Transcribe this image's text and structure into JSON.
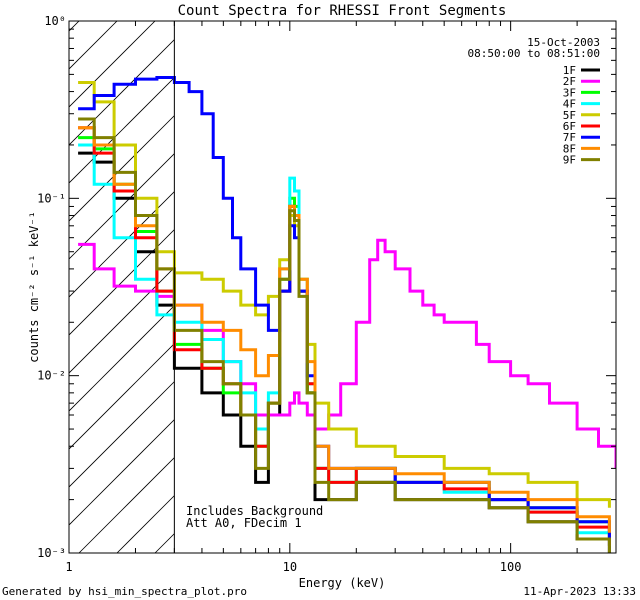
{
  "chart_data": {
    "type": "line",
    "title": "Count Spectra for RHESSI Front Segments",
    "xlabel": "Energy (keV)",
    "ylabel": "counts cm⁻² s⁻¹ keV⁻¹",
    "xscale": "log",
    "yscale": "log",
    "xlim": [
      1,
      300
    ],
    "ylim": [
      0.001,
      1
    ],
    "x_ticks": [
      {
        "value": 1,
        "label": "1"
      },
      {
        "value": 10,
        "label": "10"
      },
      {
        "value": 100,
        "label": "100"
      }
    ],
    "y_ticks": [
      {
        "value": 1,
        "label": "10⁰"
      },
      {
        "value": 0.1,
        "label": "10⁻¹"
      },
      {
        "value": 0.01,
        "label": "10⁻²"
      },
      {
        "value": 0.001,
        "label": "10⁻³"
      }
    ],
    "hatched_region": {
      "xmin": 1,
      "xmax": 3
    },
    "date": "15-Oct-2003",
    "time_range": "08:50:00 to 08:51:00",
    "annotations": [
      "Includes Background",
      "Att A0, FDecim 1"
    ],
    "series": [
      {
        "name": "1F",
        "color": "#000000",
        "x": [
          1.1,
          1.3,
          1.6,
          2,
          2.5,
          3,
          4,
          5,
          6,
          7,
          8,
          9,
          10,
          10.5,
          11,
          12,
          13,
          15,
          20,
          30,
          50,
          80,
          120,
          200,
          280
        ],
        "y": [
          0.18,
          0.16,
          0.1,
          0.05,
          0.025,
          0.011,
          0.008,
          0.006,
          0.004,
          0.0025,
          0.006,
          0.03,
          0.09,
          0.08,
          0.03,
          0.008,
          0.002,
          0.002,
          0.0025,
          0.002,
          0.002,
          0.0018,
          0.0015,
          0.0012,
          0.001
        ]
      },
      {
        "name": "2F",
        "color": "#ff00ff",
        "x": [
          1.1,
          1.3,
          1.6,
          2,
          2.5,
          3,
          4,
          5,
          6,
          7,
          8,
          9,
          10,
          10.5,
          11,
          12,
          13,
          15,
          17,
          20,
          23,
          25,
          27,
          30,
          35,
          40,
          45,
          50,
          60,
          70,
          80,
          100,
          120,
          150,
          200,
          250,
          300
        ],
        "y": [
          0.055,
          0.04,
          0.032,
          0.03,
          0.028,
          0.025,
          0.018,
          0.012,
          0.009,
          0.006,
          0.006,
          0.006,
          0.007,
          0.008,
          0.007,
          0.006,
          0.005,
          0.006,
          0.009,
          0.02,
          0.045,
          0.058,
          0.05,
          0.04,
          0.03,
          0.025,
          0.022,
          0.02,
          0.02,
          0.015,
          0.012,
          0.01,
          0.009,
          0.007,
          0.005,
          0.004,
          0.003
        ]
      },
      {
        "name": "3F",
        "color": "#00ff00",
        "x": [
          1.1,
          1.3,
          1.6,
          2,
          2.5,
          3,
          4,
          5,
          6,
          7,
          8,
          9,
          10,
          10.5,
          11,
          12,
          13,
          15,
          20,
          30,
          50,
          80,
          120,
          200,
          280
        ],
        "y": [
          0.22,
          0.19,
          0.12,
          0.065,
          0.03,
          0.015,
          0.011,
          0.008,
          0.006,
          0.004,
          0.007,
          0.035,
          0.1,
          0.09,
          0.03,
          0.008,
          0.003,
          0.0025,
          0.003,
          0.0025,
          0.0025,
          0.002,
          0.0018,
          0.0015,
          0.0012
        ]
      },
      {
        "name": "4F",
        "color": "#00ffff",
        "x": [
          1.1,
          1.3,
          1.6,
          2,
          2.5,
          3,
          4,
          5,
          6,
          7,
          8,
          9,
          10,
          10.5,
          11,
          12,
          13,
          15,
          20,
          30,
          50,
          80,
          120,
          200,
          280
        ],
        "y": [
          0.2,
          0.12,
          0.06,
          0.035,
          0.022,
          0.02,
          0.016,
          0.012,
          0.008,
          0.005,
          0.008,
          0.04,
          0.13,
          0.11,
          0.035,
          0.009,
          0.003,
          0.0025,
          0.003,
          0.0025,
          0.0022,
          0.002,
          0.0017,
          0.0013,
          0.0011
        ]
      },
      {
        "name": "5F",
        "color": "#cccc00",
        "x": [
          1.1,
          1.3,
          1.6,
          2,
          2.5,
          3,
          4,
          5,
          6,
          7,
          8,
          9,
          10,
          10.5,
          11,
          12,
          13,
          15,
          20,
          30,
          50,
          80,
          120,
          200,
          280
        ],
        "y": [
          0.45,
          0.35,
          0.2,
          0.1,
          0.05,
          0.038,
          0.035,
          0.03,
          0.025,
          0.022,
          0.028,
          0.045,
          0.08,
          0.07,
          0.035,
          0.015,
          0.007,
          0.005,
          0.004,
          0.0035,
          0.003,
          0.0028,
          0.0025,
          0.002,
          0.0018
        ]
      },
      {
        "name": "6F",
        "color": "#ff0000",
        "x": [
          1.1,
          1.3,
          1.6,
          2,
          2.5,
          3,
          4,
          5,
          6,
          7,
          8,
          9,
          10,
          10.5,
          11,
          12,
          13,
          15,
          20,
          30,
          50,
          80,
          120,
          200,
          280
        ],
        "y": [
          0.25,
          0.18,
          0.11,
          0.06,
          0.03,
          0.014,
          0.011,
          0.009,
          0.006,
          0.004,
          0.007,
          0.03,
          0.09,
          0.08,
          0.03,
          0.009,
          0.003,
          0.0025,
          0.003,
          0.0025,
          0.0023,
          0.002,
          0.0017,
          0.0014,
          0.0011
        ]
      },
      {
        "name": "7F",
        "color": "#0000ff",
        "x": [
          1.1,
          1.3,
          1.6,
          2,
          2.5,
          3,
          3.5,
          4,
          4.5,
          5,
          5.5,
          6,
          7,
          8,
          9,
          10,
          10.5,
          11,
          12,
          13,
          15,
          20,
          30,
          50,
          80,
          120,
          200,
          280
        ],
        "y": [
          0.32,
          0.38,
          0.44,
          0.47,
          0.48,
          0.45,
          0.4,
          0.3,
          0.17,
          0.1,
          0.06,
          0.04,
          0.025,
          0.018,
          0.03,
          0.07,
          0.06,
          0.03,
          0.01,
          0.004,
          0.003,
          0.003,
          0.0025,
          0.0025,
          0.002,
          0.0018,
          0.0015,
          0.0012
        ]
      },
      {
        "name": "8F",
        "color": "#ff8c00",
        "x": [
          1.1,
          1.3,
          1.6,
          2,
          2.5,
          3,
          4,
          5,
          6,
          7,
          8,
          9,
          10,
          10.5,
          11,
          12,
          13,
          15,
          20,
          30,
          50,
          80,
          120,
          200,
          280
        ],
        "y": [
          0.25,
          0.2,
          0.12,
          0.07,
          0.04,
          0.025,
          0.02,
          0.018,
          0.014,
          0.01,
          0.013,
          0.04,
          0.09,
          0.08,
          0.035,
          0.012,
          0.004,
          0.003,
          0.003,
          0.0028,
          0.0025,
          0.0022,
          0.002,
          0.0016,
          0.0013
        ]
      },
      {
        "name": "9F",
        "color": "#808000",
        "x": [
          1.1,
          1.3,
          1.6,
          2,
          2.5,
          3,
          4,
          5,
          6,
          7,
          8,
          9,
          10,
          10.5,
          11,
          12,
          13,
          15,
          20,
          30,
          50,
          80,
          120,
          200,
          280
        ],
        "y": [
          0.28,
          0.22,
          0.14,
          0.08,
          0.04,
          0.018,
          0.012,
          0.009,
          0.006,
          0.003,
          0.007,
          0.035,
          0.085,
          0.075,
          0.028,
          0.008,
          0.0025,
          0.002,
          0.0025,
          0.002,
          0.002,
          0.0018,
          0.0015,
          0.0012,
          0.001
        ]
      }
    ]
  },
  "footer": {
    "generated_by": "Generated by hsi_min_spectra_plot.pro",
    "timestamp": "11-Apr-2023 13:33"
  }
}
